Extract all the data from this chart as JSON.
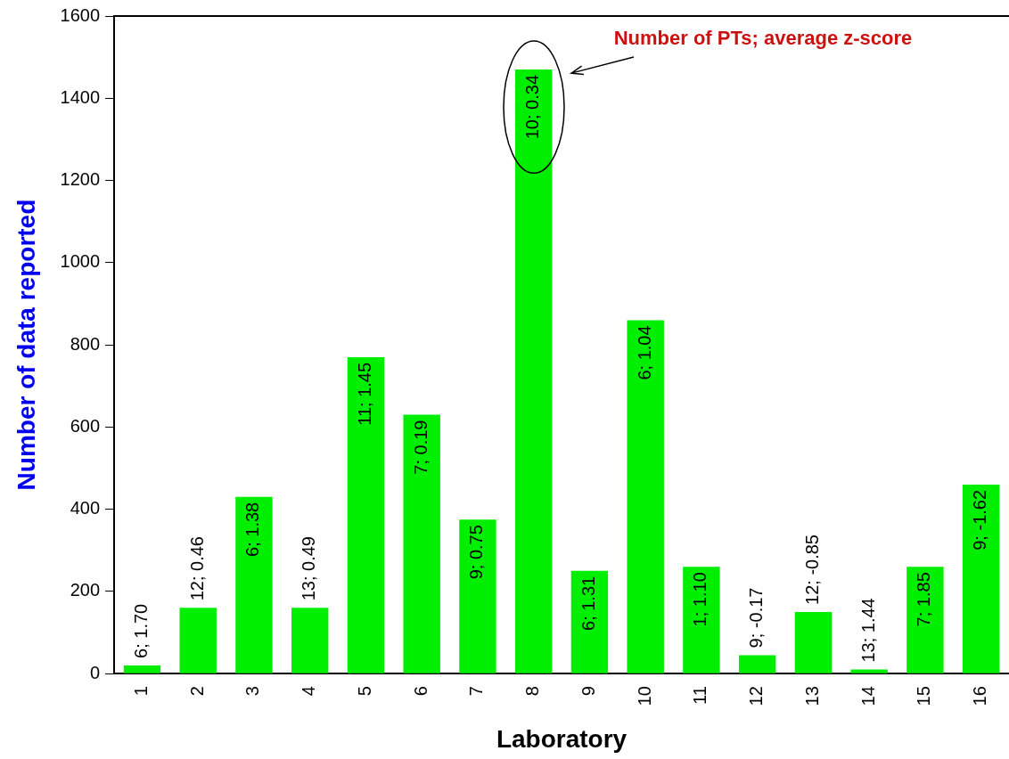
{
  "chart_data": {
    "type": "bar",
    "xlabel": "Laboratory",
    "ylabel": "Number of data reported",
    "categories": [
      "1",
      "2",
      "3",
      "4",
      "5",
      "6",
      "7",
      "8",
      "9",
      "10",
      "11",
      "12",
      "13",
      "14",
      "15",
      "16"
    ],
    "values": [
      20,
      160,
      430,
      160,
      770,
      630,
      375,
      1470,
      250,
      860,
      260,
      45,
      150,
      10,
      260,
      460
    ],
    "color": "#00ee00",
    "ylim": [
      0,
      1600
    ],
    "yticks": [
      0,
      200,
      400,
      600,
      800,
      1000,
      1200,
      1400,
      1600
    ],
    "grid": false,
    "legend": false,
    "annotations": [
      "Number of PTs; average z-score",
      {
        "text": "6; 1.70",
        "x": "1",
        "y": 20
      },
      {
        "text": "12; 0.46",
        "x": "2",
        "y": 160
      },
      {
        "text": "6; 1.38",
        "x": "3",
        "y": 430
      },
      {
        "text": "13; 0.49",
        "x": "4",
        "y": 160
      },
      {
        "text": "11; 1.45",
        "x": "5",
        "y": 770
      },
      {
        "text": "7; 0.19",
        "x": "6",
        "y": 630
      },
      {
        "text": "9; 0.75",
        "x": "7",
        "y": 375
      },
      {
        "text": "10; 0.34",
        "x": "8",
        "y": 1470
      },
      {
        "text": "6; 1.31",
        "x": "9",
        "y": 250
      },
      {
        "text": "6; 1.04",
        "x": "10",
        "y": 860
      },
      {
        "text": "1; 1.10",
        "x": "11",
        "y": 260
      },
      {
        "text": "9; -0.17",
        "x": "12",
        "y": 45
      },
      {
        "text": "12; -0.85",
        "x": "13",
        "y": 150
      },
      {
        "text": "13; 1.44",
        "x": "14",
        "y": 10
      },
      {
        "text": "7; 1.85",
        "x": "15",
        "y": 260
      },
      {
        "text": "9; -1.62",
        "x": "16",
        "y": 460
      }
    ]
  }
}
